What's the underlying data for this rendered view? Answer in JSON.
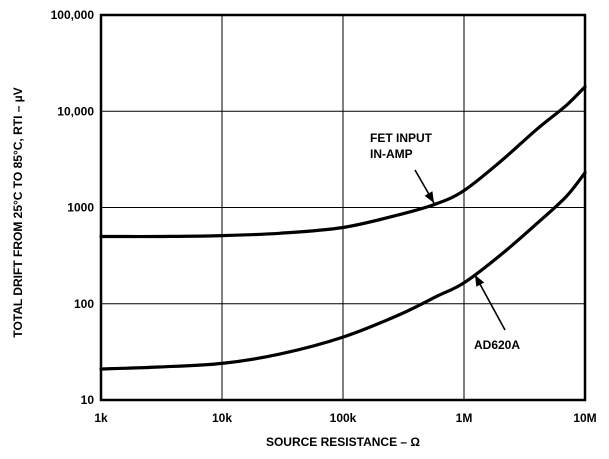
{
  "chart_data": {
    "type": "line",
    "xlabel": "SOURCE RESISTANCE – Ω",
    "ylabel": "TOTAL DRIFT FROM 25°C TO 85°C, RTI – µV",
    "x_scale": "log",
    "y_scale": "log",
    "xlim": [
      1000,
      10000000
    ],
    "ylim": [
      10,
      100000
    ],
    "grid": true,
    "x_ticks": [
      {
        "value": 1000,
        "label": "1k"
      },
      {
        "value": 10000,
        "label": "10k"
      },
      {
        "value": 100000,
        "label": "100k"
      },
      {
        "value": 1000000,
        "label": "1M"
      },
      {
        "value": 10000000,
        "label": "10M"
      }
    ],
    "y_ticks": [
      {
        "value": 10,
        "label": "10"
      },
      {
        "value": 100,
        "label": "100"
      },
      {
        "value": 1000,
        "label": "1000"
      },
      {
        "value": 10000,
        "label": "10,000"
      },
      {
        "value": 100000,
        "label": "100,000"
      }
    ],
    "series": [
      {
        "name": "FET INPUT IN-AMP",
        "x": [
          1000,
          3000,
          10000,
          30000,
          100000,
          300000,
          600000,
          1000000,
          2000000,
          4000000,
          7000000,
          10000000
        ],
        "y": [
          500,
          500,
          510,
          540,
          620,
          850,
          1100,
          1500,
          3000,
          6500,
          11500,
          18000
        ]
      },
      {
        "name": "AD620A",
        "x": [
          1000,
          3000,
          10000,
          30000,
          100000,
          300000,
          600000,
          1000000,
          2000000,
          4000000,
          7000000,
          10000000
        ],
        "y": [
          21,
          22,
          24,
          30,
          45,
          78,
          120,
          165,
          320,
          680,
          1300,
          2300
        ]
      }
    ],
    "annotations": [
      {
        "lines": [
          "FET INPUT",
          "IN-AMP"
        ],
        "series": "FET INPUT IN-AMP"
      },
      {
        "lines": [
          "AD620A"
        ],
        "series": "AD620A"
      }
    ]
  }
}
